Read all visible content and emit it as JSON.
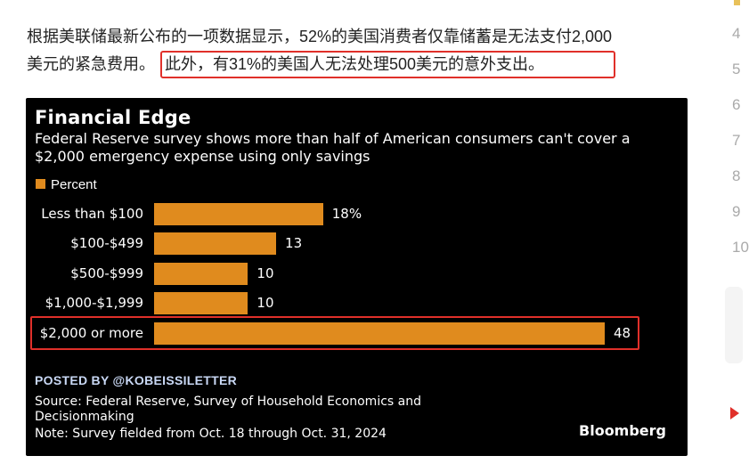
{
  "article": {
    "line1": "根据美联储最新公布的一项数据显示，52%的美国消费者仅靠储蓄是无法支付2,000",
    "line2_start": "美元的紧急费用。",
    "highlight": "此外，有31%的美国人无法处理500美元的意外支出。"
  },
  "chart_card": {
    "posted_by": "POSTED BY @KOBEISSILETTER",
    "source": "Source: Federal Reserve, Survey of Household Economics and Decisionmaking",
    "note": "Note: Survey fielded from Oct. 18 through Oct. 31, 2024",
    "brand": "Bloomberg"
  },
  "chart_data": {
    "type": "bar",
    "orientation": "horizontal",
    "title": "Financial Edge",
    "subtitle": "Federal Reserve survey shows more than half of American consumers can't cover a $2,000 emergency expense using only savings",
    "legend": [
      "Percent"
    ],
    "categories": [
      "Less than $100",
      "$100-$499",
      "$500-$999",
      "$1,000-$1,999",
      "$2,000 or more"
    ],
    "values": [
      18,
      13,
      10,
      10,
      48
    ],
    "value_labels": [
      "18%",
      "13",
      "10",
      "10",
      "48"
    ],
    "xlim": [
      0,
      48
    ],
    "highlighted_category": "$2,000 or more",
    "bar_color": "#e08b1e"
  },
  "sidebar": {
    "numbers": [
      "4",
      "5",
      "6",
      "7",
      "8",
      "9",
      "10"
    ]
  },
  "colors": {
    "highlight_border": "#e0302a",
    "chart_bg": "#000000"
  }
}
